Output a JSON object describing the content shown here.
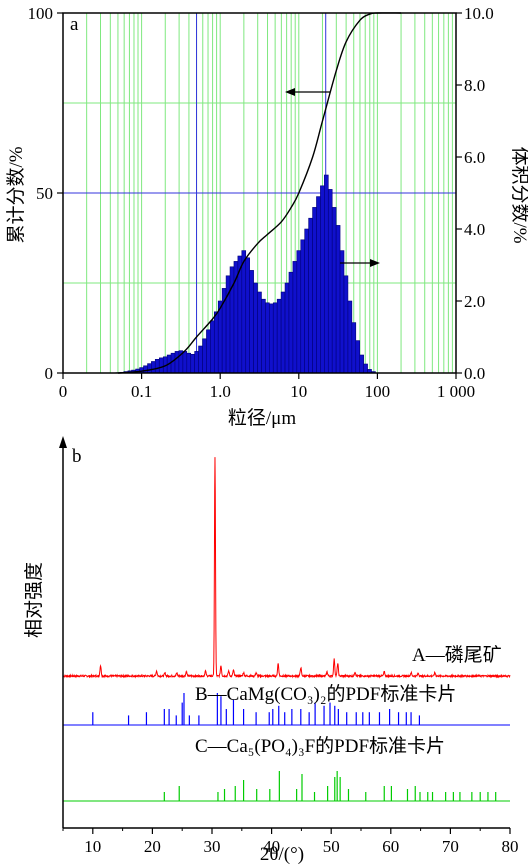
{
  "chart_data": [
    {
      "type": "bar",
      "panel_label": "a",
      "xlabel": "粒径/μm",
      "ylabel_left": "累计分数/%",
      "ylabel_right": "体积分数/%",
      "x_scale": "log",
      "xlim": [
        0.01,
        1000
      ],
      "x_tick_labels": [
        "0",
        "0.1",
        "1.0",
        "10",
        "100",
        "1 000"
      ],
      "x_tick_values": [
        0.01,
        0.1,
        1,
        10,
        100,
        1000
      ],
      "ylim_left": [
        0,
        100
      ],
      "y_left_ticks": [
        "0",
        "50",
        "100"
      ],
      "ylim_right": [
        0,
        10
      ],
      "y_right_ticks": [
        "0.0",
        "2.0",
        "4.0",
        "6.0",
        "8.0",
        "10.0"
      ],
      "grid": true,
      "histogram_bin_log_width": 0.05,
      "histogram_bins": [
        [
          0.05,
          0.01
        ],
        [
          0.056,
          0.02
        ],
        [
          0.063,
          0.04
        ],
        [
          0.071,
          0.06
        ],
        [
          0.079,
          0.08
        ],
        [
          0.089,
          0.11
        ],
        [
          0.1,
          0.15
        ],
        [
          0.112,
          0.2
        ],
        [
          0.126,
          0.26
        ],
        [
          0.141,
          0.32
        ],
        [
          0.158,
          0.38
        ],
        [
          0.178,
          0.42
        ],
        [
          0.2,
          0.45
        ],
        [
          0.224,
          0.5
        ],
        [
          0.251,
          0.55
        ],
        [
          0.282,
          0.6
        ],
        [
          0.316,
          0.62
        ],
        [
          0.355,
          0.6
        ],
        [
          0.398,
          0.55
        ],
        [
          0.447,
          0.52
        ],
        [
          0.501,
          0.6
        ],
        [
          0.562,
          0.75
        ],
        [
          0.631,
          0.95
        ],
        [
          0.708,
          1.2
        ],
        [
          0.794,
          1.45
        ],
        [
          0.891,
          1.7
        ],
        [
          1.0,
          2.0
        ],
        [
          1.122,
          2.35
        ],
        [
          1.259,
          2.7
        ],
        [
          1.413,
          2.95
        ],
        [
          1.585,
          3.1
        ],
        [
          1.778,
          3.25
        ],
        [
          1.995,
          3.4
        ],
        [
          2.239,
          3.2
        ],
        [
          2.512,
          2.85
        ],
        [
          2.818,
          2.5
        ],
        [
          3.162,
          2.25
        ],
        [
          3.548,
          2.05
        ],
        [
          3.981,
          1.95
        ],
        [
          4.467,
          1.92
        ],
        [
          5.012,
          1.95
        ],
        [
          5.623,
          2.05
        ],
        [
          6.31,
          2.25
        ],
        [
          7.079,
          2.5
        ],
        [
          7.943,
          2.8
        ],
        [
          8.913,
          3.1
        ],
        [
          10.0,
          3.4
        ],
        [
          11.22,
          3.7
        ],
        [
          12.59,
          4.0
        ],
        [
          14.13,
          4.3
        ],
        [
          15.85,
          4.6
        ],
        [
          17.78,
          4.9
        ],
        [
          19.95,
          5.2
        ],
        [
          22.39,
          5.5
        ],
        [
          25.12,
          5.1
        ],
        [
          28.18,
          4.6
        ],
        [
          31.62,
          4.1
        ],
        [
          35.48,
          3.4
        ],
        [
          39.81,
          2.7
        ],
        [
          44.67,
          2.0
        ],
        [
          50.12,
          1.4
        ],
        [
          56.23,
          0.9
        ],
        [
          63.1,
          0.5
        ],
        [
          70.79,
          0.25
        ],
        [
          79.43,
          0.1
        ],
        [
          89.13,
          0.04
        ]
      ],
      "cumulative_curve": [
        [
          0.05,
          0
        ],
        [
          0.1,
          0.5
        ],
        [
          0.2,
          2
        ],
        [
          0.35,
          6
        ],
        [
          0.5,
          10
        ],
        [
          0.8,
          15
        ],
        [
          1.0,
          18
        ],
        [
          1.5,
          25
        ],
        [
          2.0,
          31
        ],
        [
          3.0,
          36
        ],
        [
          4.0,
          38.5
        ],
        [
          6.0,
          42
        ],
        [
          8.0,
          46
        ],
        [
          10.0,
          50
        ],
        [
          15.0,
          60
        ],
        [
          20.0,
          70
        ],
        [
          30.0,
          84
        ],
        [
          40.0,
          92
        ],
        [
          60.0,
          98
        ],
        [
          80.0,
          99.7
        ],
        [
          100.0,
          100
        ],
        [
          200.0,
          100
        ]
      ],
      "reference_lines": {
        "horizontal_left_values": [
          50
        ],
        "vertical_x_values": [
          0.5,
          22
        ]
      }
    },
    {
      "type": "line",
      "panel_label": "b",
      "xlabel": "2θ/(°)",
      "ylabel": "相对强度",
      "xlim": [
        5,
        80
      ],
      "x_ticks": [
        10,
        20,
        30,
        40,
        50,
        60,
        70,
        80
      ],
      "series": [
        {
          "name": "A—磷尾矿",
          "color": "#ff0000",
          "peaks": [
            [
              11.3,
              0.025
            ],
            [
              20.7,
              0.012
            ],
            [
              22.1,
              0.007
            ],
            [
              24.1,
              0.007
            ],
            [
              25.7,
              0.01
            ],
            [
              28.9,
              0.012
            ],
            [
              30.5,
              0.52
            ],
            [
              31.5,
              0.025
            ],
            [
              32.8,
              0.012
            ],
            [
              33.6,
              0.014
            ],
            [
              35.3,
              0.008
            ],
            [
              37.4,
              0.008
            ],
            [
              41.1,
              0.03
            ],
            [
              44.9,
              0.02
            ],
            [
              49.3,
              0.01
            ],
            [
              50.5,
              0.04
            ],
            [
              51.1,
              0.03
            ],
            [
              54.0,
              0.01
            ],
            [
              58.9,
              0.01
            ],
            [
              63.4,
              0.008
            ],
            [
              64.6,
              0.007
            ],
            [
              67.4,
              0.008
            ]
          ]
        },
        {
          "name": "B—CaMg(CO₃)₂的PDF标准卡片",
          "color": "#0000ff",
          "positions": [
            10.0,
            16.0,
            19.0,
            22.0,
            22.8,
            24.0,
            25.0,
            25.3,
            26.2,
            27.8,
            30.9,
            31.5,
            32.4,
            33.6,
            35.3,
            37.4,
            39.6,
            40.2,
            41.2,
            42.2,
            43.4,
            44.9,
            46.3,
            47.3,
            48.8,
            49.8,
            50.6,
            51.2,
            52.6,
            54.2,
            55.3,
            56.4,
            58.1,
            59.8,
            61.3,
            62.6,
            63.4,
            64.8
          ],
          "heights": [
            0.4,
            0.3,
            0.4,
            0.5,
            0.5,
            0.3,
            0.7,
            1.0,
            0.3,
            0.3,
            1.0,
            0.9,
            0.5,
            0.8,
            0.5,
            0.4,
            0.4,
            0.5,
            0.6,
            0.4,
            0.5,
            0.5,
            0.4,
            0.7,
            0.6,
            0.7,
            0.6,
            0.5,
            0.4,
            0.4,
            0.4,
            0.4,
            0.4,
            0.5,
            0.4,
            0.4,
            0.4,
            0.3
          ]
        },
        {
          "name": "C—Ca₅(PO₄)₃F的PDF标准卡片",
          "color": "#00cc00",
          "positions": [
            22.0,
            24.5,
            31.0,
            32.1,
            33.9,
            35.3,
            37.5,
            39.7,
            41.3,
            44.2,
            45.1,
            47.2,
            49.4,
            50.6,
            51.0,
            51.5,
            52.9,
            55.8,
            58.9,
            60.1,
            62.8,
            64.1,
            64.9,
            66.2,
            67.0,
            69.2,
            70.5,
            71.6,
            73.6,
            75.0,
            76.3,
            77.6
          ],
          "heights": [
            0.3,
            0.5,
            0.3,
            0.4,
            0.5,
            0.7,
            0.4,
            0.4,
            1.0,
            0.4,
            0.9,
            0.3,
            0.5,
            0.8,
            1.0,
            0.8,
            0.4,
            0.3,
            0.5,
            0.5,
            0.4,
            0.5,
            0.3,
            0.3,
            0.3,
            0.3,
            0.3,
            0.3,
            0.3,
            0.3,
            0.3,
            0.3
          ]
        }
      ]
    }
  ]
}
